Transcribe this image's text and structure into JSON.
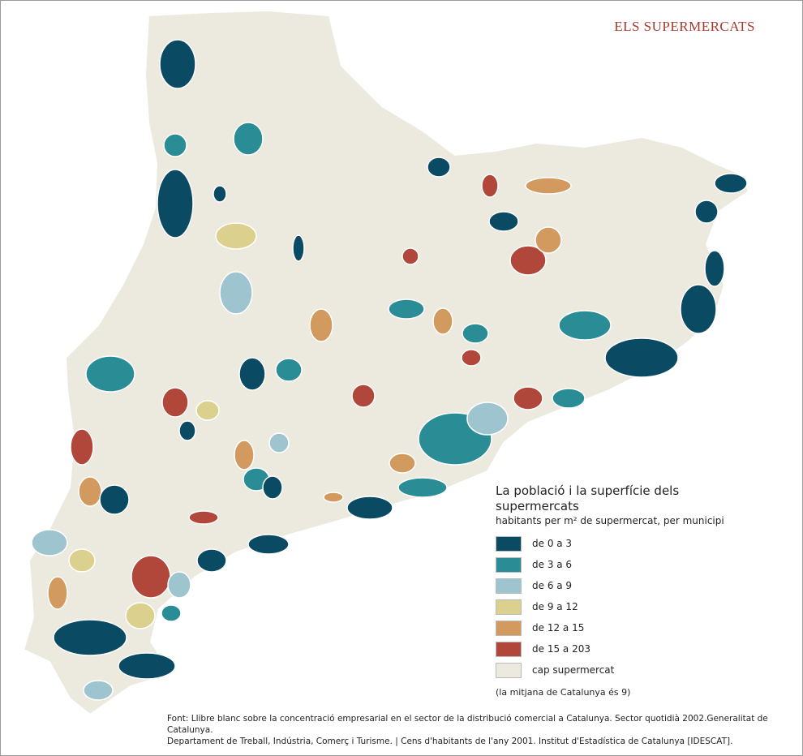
{
  "title": "ELS SUPERMERCATS",
  "legend": {
    "title": "La població i la superfície dels supermercats",
    "subtitle": "habitants per m² de supermercat, per municipi",
    "items": [
      {
        "label": "de 0 a 3",
        "color": "#0b4a63"
      },
      {
        "label": "de 3 a 6",
        "color": "#2a8d96"
      },
      {
        "label": "de 6 a 9",
        "color": "#9ec5cf"
      },
      {
        "label": "de 9 a 12",
        "color": "#dcd08e"
      },
      {
        "label": "de 12 a 15",
        "color": "#d29a5f"
      },
      {
        "label": "de 15 a 203",
        "color": "#b0473a"
      },
      {
        "label": "cap supermercat",
        "color": "#ece9df"
      }
    ],
    "note": "(la mitjana de Catalunya és 9)"
  },
  "source": [
    "Font:  Llibre blanc sobre la concentració empresarial en el sector de la distribució comercial a Catalunya. Sector quotidià 2002.Generalitat de Catalunya.",
    "Departament de Treball, Indústria, Comerç i Turisme. | Cens d'habitants de l'any 2001. Institut d'Estadística de Catalunya [IDESCAT]."
  ]
}
